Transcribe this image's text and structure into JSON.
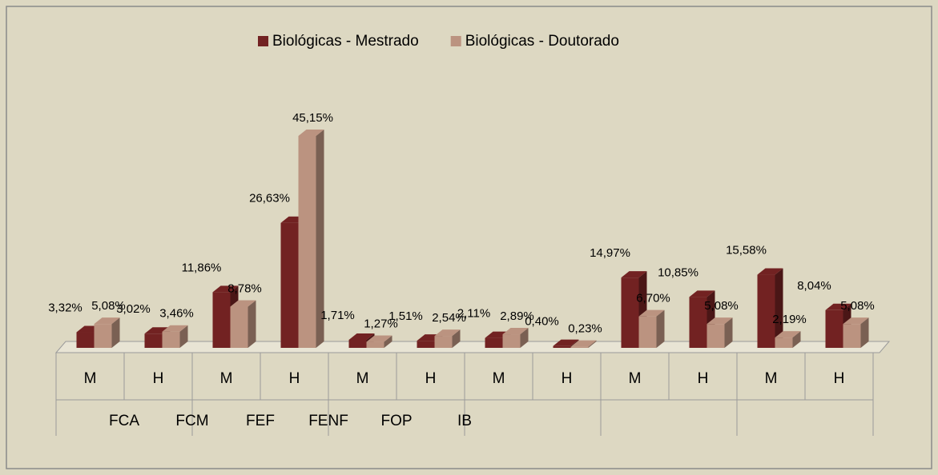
{
  "chart_data": {
    "type": "bar3d",
    "categories": [
      "M",
      "H",
      "M",
      "H",
      "M",
      "H",
      "M",
      "H",
      "M",
      "H",
      "M",
      "H"
    ],
    "groups": [
      "FCA",
      "FCM",
      "FEF",
      "FENF",
      "FOP",
      "IB"
    ],
    "series": [
      {
        "name": "Biológicas - Mestrado",
        "color": "#722222",
        "values": [
          3.32,
          3.02,
          11.86,
          26.63,
          1.71,
          1.51,
          2.11,
          0.4,
          14.97,
          10.85,
          15.58,
          8.04
        ],
        "value_labels": [
          "3,32%",
          "3,02%",
          "11,86%",
          "26,63%",
          "1,71%",
          "1,51%",
          "2,11%",
          "0,40%",
          "14,97%",
          "10,85%",
          "15,58%",
          "8,04%"
        ]
      },
      {
        "name": "Biológicas - Doutorado",
        "color": "#bb9380",
        "values": [
          5.08,
          3.46,
          8.78,
          45.15,
          1.27,
          2.54,
          2.89,
          0.23,
          6.7,
          5.08,
          2.19,
          5.08
        ],
        "value_labels": [
          "5,08%",
          "3,46%",
          "8,78%",
          "45,15%",
          "1,27%",
          "2,54%",
          "2,89%",
          "0,23%",
          "6,70%",
          "5,08%",
          "2,19%",
          "5,08%"
        ]
      }
    ],
    "legend": "top"
  }
}
